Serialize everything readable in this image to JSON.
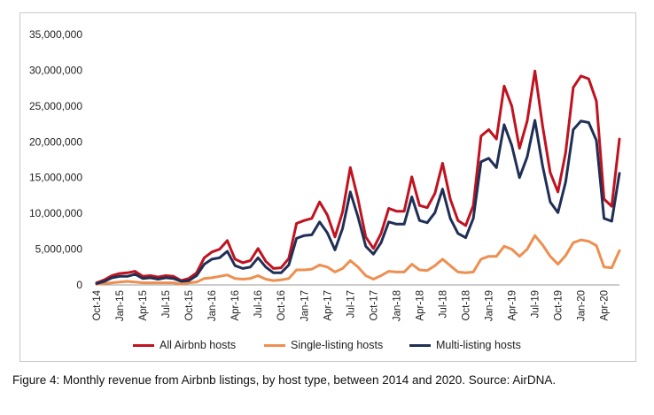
{
  "chart_data": {
    "type": "line",
    "ylim": [
      0,
      35000000
    ],
    "yticks": [
      0,
      5000000,
      10000000,
      15000000,
      20000000,
      25000000,
      30000000,
      35000000
    ],
    "ytick_labels": [
      "0",
      "5,000,000",
      "10,000,000",
      "15,000,000",
      "20,000,000",
      "25,000,000",
      "30,000,000",
      "35,000,000"
    ],
    "x": [
      "Oct-14",
      "Nov-14",
      "Dec-14",
      "Jan-15",
      "Feb-15",
      "Mar-15",
      "Apr-15",
      "May-15",
      "Jun-15",
      "Jul-15",
      "Aug-15",
      "Sep-15",
      "Oct-15",
      "Nov-15",
      "Dec-15",
      "Jan-16",
      "Feb-16",
      "Mar-16",
      "Apr-16",
      "May-16",
      "Jun-16",
      "Jul-16",
      "Aug-16",
      "Sep-16",
      "Oct-16",
      "Nov-16",
      "Dec-16",
      "Jan-17",
      "Feb-17",
      "Mar-17",
      "Apr-17",
      "May-17",
      "Jun-17",
      "Jul-17",
      "Aug-17",
      "Sep-17",
      "Oct-17",
      "Nov-17",
      "Dec-17",
      "Jan-18",
      "Feb-18",
      "Mar-18",
      "Apr-18",
      "May-18",
      "Jun-18",
      "Jul-18",
      "Aug-18",
      "Sep-18",
      "Oct-18",
      "Nov-18",
      "Dec-18",
      "Jan-19",
      "Feb-19",
      "Mar-19",
      "Apr-19",
      "May-19",
      "Jun-19",
      "Jul-19",
      "Aug-19",
      "Sep-19",
      "Oct-19",
      "Nov-19",
      "Dec-19",
      "Jan-20",
      "Feb-20",
      "Mar-20",
      "Apr-20",
      "May-20",
      "Jun-20"
    ],
    "xtick_labels": [
      "Oct-14",
      "Jan-15",
      "Apr-15",
      "Jul-15",
      "Oct-15",
      "Jan-16",
      "Apr-16",
      "Jul-16",
      "Oct-16",
      "Jan-17",
      "Apr-17",
      "Jul-17",
      "Oct-17",
      "Jan-18",
      "Apr-18",
      "Jul-18",
      "Oct-18",
      "Jan-19",
      "Apr-19",
      "Jul-19",
      "Oct-19",
      "Jan-20",
      "Apr-20"
    ],
    "legend_position": "bottom",
    "grid": false,
    "series": [
      {
        "name": "All Airbnb hosts",
        "color": "#c0121f",
        "values": [
          300000,
          700000,
          1300000,
          1600000,
          1700000,
          1900000,
          1200000,
          1300000,
          1100000,
          1300000,
          1200000,
          600000,
          900000,
          1700000,
          3800000,
          4600000,
          5000000,
          6200000,
          3600000,
          3100000,
          3400000,
          5100000,
          3300000,
          2300000,
          2400000,
          3700000,
          8600000,
          9000000,
          9300000,
          11600000,
          9800000,
          6700000,
          10200000,
          16400000,
          12000000,
          6700000,
          5100000,
          7200000,
          10700000,
          10300000,
          10300000,
          15100000,
          11100000,
          10800000,
          12800000,
          17000000,
          12000000,
          9000000,
          8300000,
          11100000,
          20800000,
          21700000,
          20400000,
          27800000,
          25000000,
          19100000,
          22900000,
          29900000,
          22300000,
          15700000,
          13000000,
          18500000,
          27600000,
          29200000,
          28800000,
          25700000,
          12000000,
          11000000,
          20400000
        ]
      },
      {
        "name": "Single-listing hosts",
        "color": "#ee8f4f",
        "values": [
          100000,
          200000,
          300000,
          400000,
          500000,
          400000,
          300000,
          300000,
          300000,
          300000,
          300000,
          100000,
          300000,
          400000,
          900000,
          1000000,
          1200000,
          1400000,
          900000,
          800000,
          900000,
          1300000,
          800000,
          600000,
          700000,
          900000,
          2100000,
          2100000,
          2200000,
          2800000,
          2500000,
          1800000,
          2300000,
          3400000,
          2500000,
          1300000,
          800000,
          1300000,
          1900000,
          1800000,
          1800000,
          2900000,
          2100000,
          2000000,
          2700000,
          3600000,
          2700000,
          1800000,
          1700000,
          1800000,
          3600000,
          4000000,
          4000000,
          5400000,
          5000000,
          4000000,
          5000000,
          6900000,
          5600000,
          4000000,
          2900000,
          4100000,
          5900000,
          6300000,
          6100000,
          5500000,
          2500000,
          2400000,
          4800000
        ]
      },
      {
        "name": "Multi-listing hosts",
        "color": "#1f2f55",
        "values": [
          200000,
          500000,
          1000000,
          1200000,
          1200000,
          1500000,
          900000,
          1000000,
          800000,
          1000000,
          900000,
          500000,
          600000,
          1300000,
          2900000,
          3600000,
          3800000,
          4700000,
          2700000,
          2300000,
          2500000,
          3800000,
          2500000,
          1700000,
          1700000,
          2800000,
          6500000,
          6900000,
          7000000,
          8800000,
          7300000,
          4900000,
          7900000,
          13000000,
          9500000,
          5400000,
          4300000,
          5900000,
          8800000,
          8500000,
          8500000,
          12300000,
          9000000,
          8700000,
          10100000,
          13400000,
          9300000,
          7200000,
          6600000,
          9300000,
          17200000,
          17700000,
          16400000,
          22400000,
          19500000,
          15000000,
          17900000,
          23000000,
          16700000,
          11600000,
          10100000,
          14400000,
          21700000,
          22900000,
          22700000,
          20200000,
          9300000,
          8900000,
          15600000
        ]
      }
    ]
  },
  "caption": "Figure 4: Monthly revenue from Airbnb listings, by host type, between 2014 and 2020. Source: AirDNA."
}
